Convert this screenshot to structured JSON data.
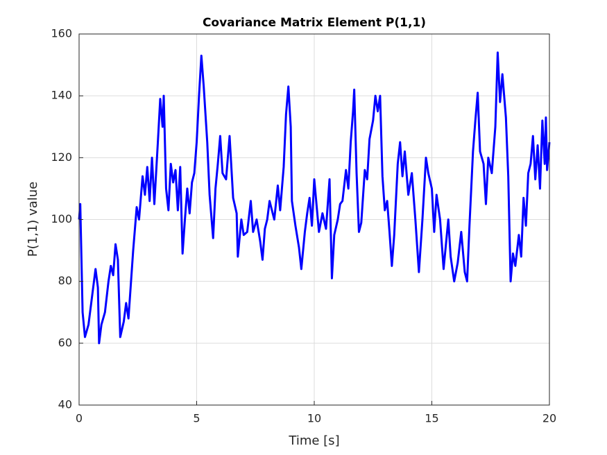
{
  "chart_data": {
    "type": "line",
    "title": "Covariance Matrix Element P(1,1)",
    "xlabel": "Time [s]",
    "ylabel": "P(1,1) value",
    "color": "#0000ff",
    "grid": true,
    "xlim": [
      0,
      20
    ],
    "xticks": [
      0,
      5,
      10,
      15,
      20
    ],
    "ylim": [
      40,
      160
    ],
    "yticks": [
      40,
      60,
      80,
      100,
      120,
      140,
      160
    ],
    "x": [
      0,
      0.05,
      0.15,
      0.25,
      0.4,
      0.55,
      0.7,
      0.8,
      0.85,
      0.95,
      1.1,
      1.25,
      1.35,
      1.45,
      1.55,
      1.65,
      1.75,
      1.9,
      2.0,
      2.1,
      2.3,
      2.45,
      2.55,
      2.7,
      2.8,
      2.9,
      3.0,
      3.1,
      3.2,
      3.35,
      3.45,
      3.55,
      3.6,
      3.7,
      3.8,
      3.9,
      4.0,
      4.1,
      4.2,
      4.3,
      4.4,
      4.5,
      4.6,
      4.7,
      4.8,
      4.9,
      5.0,
      5.1,
      5.2,
      5.3,
      5.45,
      5.55,
      5.7,
      5.8,
      5.9,
      6.0,
      6.1,
      6.25,
      6.4,
      6.55,
      6.7,
      6.75,
      6.9,
      7.0,
      7.15,
      7.3,
      7.4,
      7.55,
      7.7,
      7.8,
      7.9,
      8.0,
      8.1,
      8.3,
      8.45,
      8.55,
      8.7,
      8.8,
      8.9,
      9.0,
      9.05,
      9.2,
      9.35,
      9.45,
      9.6,
      9.7,
      9.8,
      9.9,
      10.0,
      10.2,
      10.35,
      10.5,
      10.65,
      10.75,
      10.85,
      11.0,
      11.1,
      11.2,
      11.35,
      11.45,
      11.55,
      11.65,
      11.7,
      11.8,
      11.9,
      12.0,
      12.15,
      12.25,
      12.35,
      12.5,
      12.6,
      12.7,
      12.8,
      12.9,
      13.0,
      13.1,
      13.2,
      13.3,
      13.4,
      13.55,
      13.65,
      13.75,
      13.85,
      14.0,
      14.15,
      14.3,
      14.45,
      14.6,
      14.75,
      14.85,
      15.0,
      15.1,
      15.2,
      15.35,
      15.5,
      15.6,
      15.7,
      15.8,
      15.95,
      16.1,
      16.25,
      16.4,
      16.5,
      16.6,
      16.75,
      16.85,
      16.95,
      17.05,
      17.2,
      17.3,
      17.4,
      17.55,
      17.7,
      17.8,
      17.9,
      18.0,
      18.15,
      18.25,
      18.35,
      18.45,
      18.55,
      18.7,
      18.8,
      18.9,
      19.0,
      19.1,
      19.2,
      19.3,
      19.4,
      19.5,
      19.6,
      19.7,
      19.8,
      19.85,
      19.9,
      20.0
    ],
    "values": [
      100,
      105,
      70,
      62,
      66,
      75,
      84,
      78,
      60,
      66,
      70,
      80,
      85,
      82,
      92,
      87,
      62,
      67,
      73,
      68,
      90,
      104,
      100,
      114,
      108,
      117,
      106,
      120,
      105,
      125,
      139,
      130,
      140,
      110,
      103,
      118,
      112,
      116,
      103,
      117,
      89,
      100,
      110,
      102,
      112,
      115,
      125,
      140,
      153,
      143,
      125,
      108,
      94,
      110,
      118,
      127,
      115,
      113,
      127,
      107,
      102,
      88,
      100,
      95,
      96,
      106,
      96,
      100,
      93,
      87,
      97,
      100,
      106,
      100,
      111,
      103,
      117,
      134,
      143,
      130,
      106,
      98,
      91,
      84,
      96,
      102,
      107,
      98,
      113,
      96,
      102,
      97,
      113,
      81,
      95,
      100,
      105,
      106,
      116,
      110,
      125,
      135,
      142,
      115,
      96,
      99,
      116,
      113,
      126,
      132,
      140,
      135,
      140,
      114,
      103,
      106,
      96,
      85,
      95,
      118,
      125,
      114,
      122,
      108,
      115,
      100,
      83,
      100,
      120,
      115,
      110,
      96,
      108,
      100,
      84,
      92,
      100,
      88,
      80,
      86,
      96,
      83,
      80,
      98,
      122,
      132,
      141,
      122,
      118,
      105,
      120,
      115,
      130,
      154,
      138,
      147,
      133,
      114,
      80,
      89,
      85,
      95,
      88,
      107,
      98,
      115,
      118,
      127,
      113,
      124,
      110,
      132,
      118,
      133,
      116,
      125
    ]
  }
}
